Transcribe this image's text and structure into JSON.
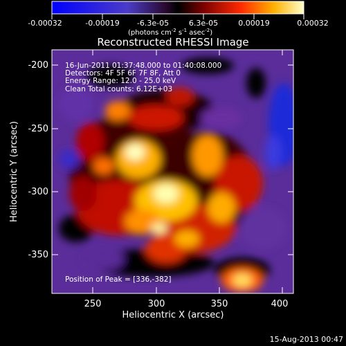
{
  "colorbar": {
    "tick_labels": [
      "-0.00032",
      "-0.00019",
      "-6.3e-05",
      "6.3e-05",
      "0.00019",
      "0.00032"
    ],
    "units_prefix": "(photons cm",
    "units_exp1": "-2",
    "units_mid": " s",
    "units_exp2": "-1",
    "units_suffix": " asec",
    "units_exp3": "-2",
    "units_close": ")"
  },
  "image": {
    "title": "Reconstructed RHESSI Image",
    "info_lines": [
      "16-Jun-2011 01:37:48.000 to 01:40:08.000",
      "Detectors: 4F 5F 6F 7F 8F, Att 0",
      "Energy Range: 12.0 - 25.0 keV",
      "Clean     Total counts: 6.12E+03"
    ],
    "peak_label": "Position of Peak = [336,-382]"
  },
  "axes": {
    "xlabel": "Heliocentric X (arcsec)",
    "ylabel": "Heliocentric Y (arcsec)",
    "xticks": [
      "250",
      "300",
      "350",
      "400"
    ],
    "yticks": [
      "-200",
      "-250",
      "-300",
      "-350"
    ]
  },
  "footer": {
    "date": "15-Aug-2013 00:47"
  },
  "colors": {
    "background": "#000000",
    "foreground": "#ffffff"
  }
}
